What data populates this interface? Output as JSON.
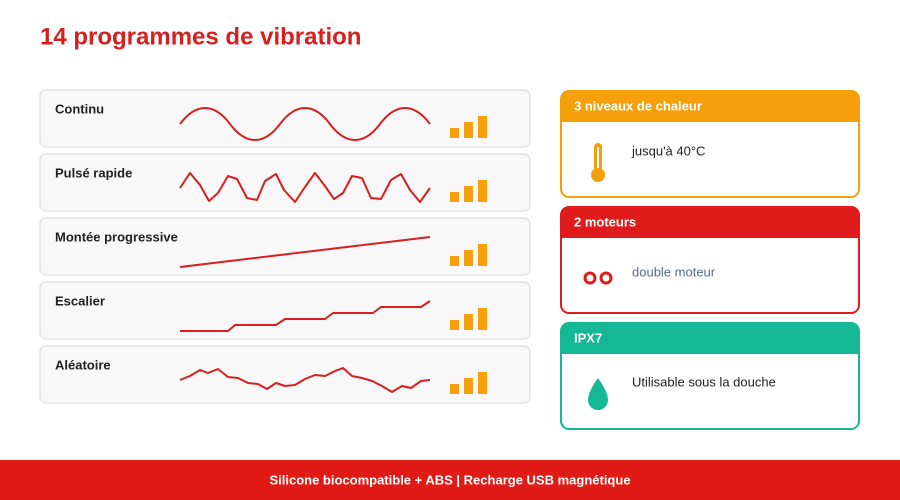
{
  "title": "14 programmes de vibration",
  "programs": [
    "Continu",
    "Pulsé rapide",
    "Montée progressive",
    "Escalier",
    "Aléatoire"
  ],
  "features": [
    {
      "title": "3 niveaux de chaleur",
      "text": "jusqu'à 40°C"
    },
    {
      "title": "2 moteurs",
      "text": "double moteur"
    },
    {
      "title": "IPX7",
      "text": "Utilisable sous la douche"
    }
  ],
  "footer": "Silicone biocompatible + ABS | Recharge USB magnétique"
}
